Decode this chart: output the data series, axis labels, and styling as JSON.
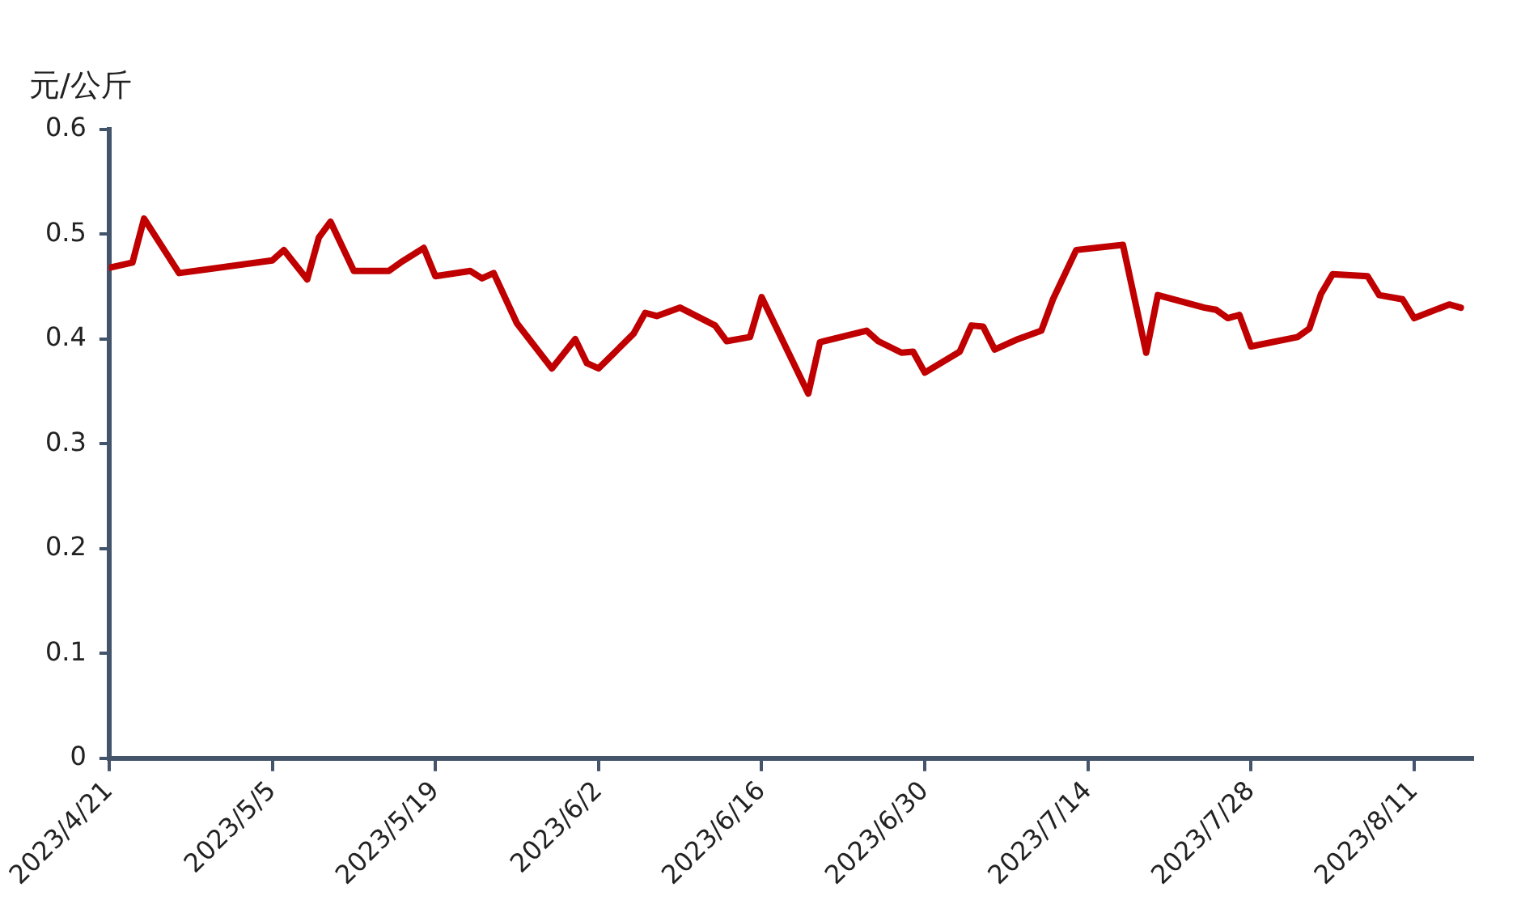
{
  "chart_data": {
    "type": "line",
    "ylabel": "元/公斤",
    "x": [
      "2023-04-21",
      "2023-04-23",
      "2023-04-24",
      "2023-04-27",
      "2023-05-05",
      "2023-05-06",
      "2023-05-08",
      "2023-05-09",
      "2023-05-10",
      "2023-05-12",
      "2023-05-15",
      "2023-05-16",
      "2023-05-18",
      "2023-05-19",
      "2023-05-22",
      "2023-05-23",
      "2023-05-24",
      "2023-05-26",
      "2023-05-29",
      "2023-05-31",
      "2023-06-01",
      "2023-06-02",
      "2023-06-05",
      "2023-06-06",
      "2023-06-07",
      "2023-06-09",
      "2023-06-12",
      "2023-06-13",
      "2023-06-15",
      "2023-06-16",
      "2023-06-20",
      "2023-06-21",
      "2023-06-25",
      "2023-06-26",
      "2023-06-28",
      "2023-06-29",
      "2023-06-30",
      "2023-07-03",
      "2023-07-04",
      "2023-07-05",
      "2023-07-06",
      "2023-07-08",
      "2023-07-10",
      "2023-07-11",
      "2023-07-13",
      "2023-07-17",
      "2023-07-19",
      "2023-07-20",
      "2023-07-24",
      "2023-07-25",
      "2023-07-26",
      "2023-07-27",
      "2023-07-28",
      "2023-08-01",
      "2023-08-02",
      "2023-08-03",
      "2023-08-04",
      "2023-08-07",
      "2023-08-08",
      "2023-08-10",
      "2023-08-11",
      "2023-08-14",
      "2023-08-15"
    ],
    "series": [
      {
        "color": "#c00000",
        "values": [
          0.468,
          0.473,
          0.515,
          0.463,
          0.475,
          0.485,
          0.457,
          0.497,
          0.512,
          0.465,
          0.465,
          0.473,
          0.487,
          0.46,
          0.465,
          0.458,
          0.463,
          0.415,
          0.372,
          0.4,
          0.377,
          0.372,
          0.405,
          0.425,
          0.422,
          0.43,
          0.413,
          0.398,
          0.402,
          0.44,
          0.348,
          0.397,
          0.408,
          0.398,
          0.387,
          0.388,
          0.368,
          0.388,
          0.413,
          0.412,
          0.39,
          0.4,
          0.408,
          0.438,
          0.485,
          0.49,
          0.387,
          0.442,
          0.43,
          0.428,
          0.42,
          0.423,
          0.393,
          0.402,
          0.41,
          0.443,
          0.462,
          0.46,
          0.442,
          0.438,
          0.42,
          0.433,
          0.43
        ]
      }
    ],
    "xlim": [
      "2023-04-21",
      "2023-08-16"
    ],
    "xticks": [
      {
        "value": "2023-04-21",
        "label": "2023/4/21"
      },
      {
        "value": "2023-05-05",
        "label": "2023/5/5"
      },
      {
        "value": "2023-05-19",
        "label": "2023/5/19"
      },
      {
        "value": "2023-06-02",
        "label": "2023/6/2"
      },
      {
        "value": "2023-06-16",
        "label": "2023/6/16"
      },
      {
        "value": "2023-06-30",
        "label": "2023/6/30"
      },
      {
        "value": "2023-07-14",
        "label": "2023/7/14"
      },
      {
        "value": "2023-07-28",
        "label": "2023/7/28"
      },
      {
        "value": "2023-08-11",
        "label": "2023/8/11"
      }
    ],
    "ylim": [
      0,
      0.6
    ],
    "yticks": [
      0,
      0.1,
      0.2,
      0.3,
      0.4,
      0.5,
      0.6
    ],
    "grid": false,
    "legend": false,
    "marker": "none",
    "line_style": "solid"
  }
}
